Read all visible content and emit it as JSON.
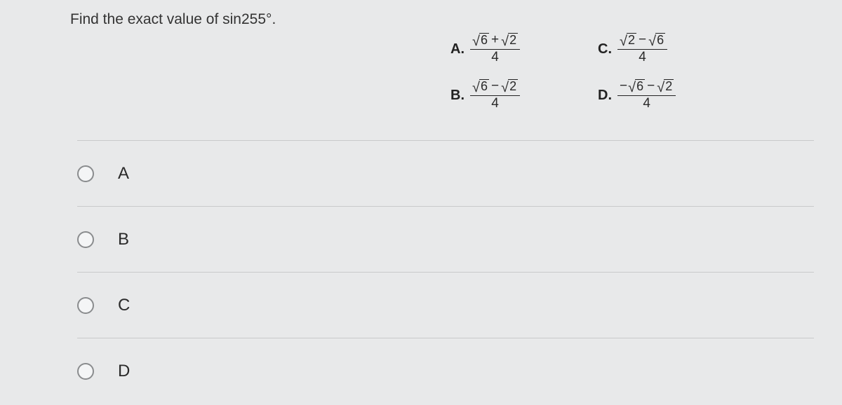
{
  "question": {
    "prompt_prefix": "Find the exact value of ",
    "func": "sin",
    "arg": "255°",
    "period": "."
  },
  "answers": {
    "A": {
      "letter": "A.",
      "num_parts": {
        "pre": "",
        "r1": "6",
        "op": "+",
        "r2": "2"
      },
      "den": "4"
    },
    "B": {
      "letter": "B.",
      "num_parts": {
        "pre": "",
        "r1": "6",
        "op": "−",
        "r2": "2"
      },
      "den": "4"
    },
    "C": {
      "letter": "C.",
      "num_parts": {
        "pre": "",
        "r1": "2",
        "op": "−",
        "r2": "6"
      },
      "den": "4"
    },
    "D": {
      "letter": "D.",
      "num_parts": {
        "pre": "−",
        "r1": "6",
        "op": "−",
        "r2": "2"
      },
      "den": "4"
    }
  },
  "options": {
    "A": "A",
    "B": "B",
    "C": "C",
    "D": "D"
  },
  "colors": {
    "bg": "#e8e9ea",
    "text": "#2a2a2a",
    "divider": "#c9cacb",
    "radio_border": "#8a8c8e"
  }
}
